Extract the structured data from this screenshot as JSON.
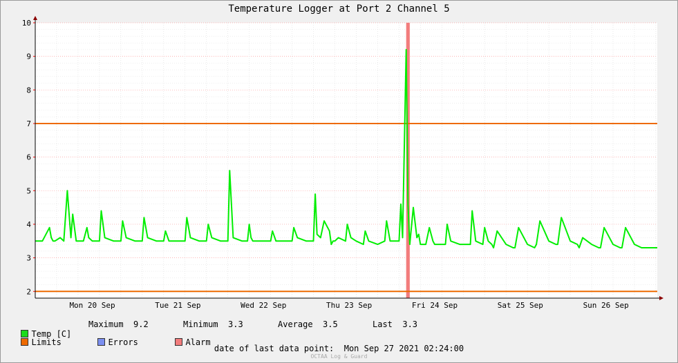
{
  "title": "Temperature Logger at Port 2 Channel 5",
  "chart_data": {
    "type": "line",
    "title": "Temperature Logger at Port 2 Channel 5",
    "ylim": [
      1.8,
      10
    ],
    "yticks": [
      2,
      3,
      4,
      5,
      6,
      7,
      8,
      9,
      10
    ],
    "xlim": [
      "2021-09-19T20:00",
      "2021-09-27T02:24"
    ],
    "x_tick_labels": [
      "Mon 20 Sep",
      "Tue 21 Sep",
      "Wed 22 Sep",
      "Thu 23 Sep",
      "Fri 24 Sep",
      "Sat 25 Sep",
      "Sun 26 Sep"
    ],
    "grid": true,
    "series": [
      {
        "name": "Temp [C]",
        "color": "#00ee00",
        "x": [
          "2021-09-19T20:00",
          "2021-09-19T22:00",
          "2021-09-20T00:00",
          "2021-09-20T00:30",
          "2021-09-20T01:00",
          "2021-09-20T01:30",
          "2021-09-20T03:00",
          "2021-09-20T04:00",
          "2021-09-20T05:00",
          "2021-09-20T06:00",
          "2021-09-20T06:30",
          "2021-09-20T07:30",
          "2021-09-20T08:00",
          "2021-09-20T08:30",
          "2021-09-20T09:30",
          "2021-09-20T10:30",
          "2021-09-20T11:00",
          "2021-09-20T12:00",
          "2021-09-20T14:00",
          "2021-09-20T14:30",
          "2021-09-20T15:30",
          "2021-09-20T18:00",
          "2021-09-20T20:00",
          "2021-09-20T20:30",
          "2021-09-20T21:30",
          "2021-09-21T00:00",
          "2021-09-21T02:00",
          "2021-09-21T02:30",
          "2021-09-21T03:30",
          "2021-09-21T06:00",
          "2021-09-21T08:00",
          "2021-09-21T08:30",
          "2021-09-21T09:30",
          "2021-09-21T12:00",
          "2021-09-21T14:00",
          "2021-09-21T14:30",
          "2021-09-21T15:30",
          "2021-09-21T18:00",
          "2021-09-21T20:00",
          "2021-09-21T20:30",
          "2021-09-21T21:30",
          "2021-09-22T00:00",
          "2021-09-22T02:00",
          "2021-09-22T02:30",
          "2021-09-22T03:30",
          "2021-09-22T06:00",
          "2021-09-22T07:30",
          "2021-09-22T08:00",
          "2021-09-22T08:30",
          "2021-09-22T09:00",
          "2021-09-22T10:00",
          "2021-09-22T12:00",
          "2021-09-22T14:00",
          "2021-09-22T14:30",
          "2021-09-22T15:30",
          "2021-09-22T18:00",
          "2021-09-22T20:00",
          "2021-09-22T20:30",
          "2021-09-22T21:30",
          "2021-09-23T00:00",
          "2021-09-23T02:00",
          "2021-09-23T02:30",
          "2021-09-23T03:00",
          "2021-09-23T04:00",
          "2021-09-23T05:00",
          "2021-09-23T06:30",
          "2021-09-23T07:00",
          "2021-09-23T07:30",
          "2021-09-23T08:00",
          "2021-09-23T09:00",
          "2021-09-23T11:00",
          "2021-09-23T11:30",
          "2021-09-23T12:30",
          "2021-09-23T14:00",
          "2021-09-23T16:00",
          "2021-09-23T16:30",
          "2021-09-23T17:30",
          "2021-09-23T20:00",
          "2021-09-23T22:00",
          "2021-09-23T22:30",
          "2021-09-23T23:30",
          "2021-09-24T02:00",
          "2021-09-24T02:30",
          "2021-09-24T03:00",
          "2021-09-24T04:00",
          "2021-09-24T04:30",
          "2021-09-24T05:00",
          "2021-09-24T06:00",
          "2021-09-24T07:00",
          "2021-09-24T07:30",
          "2021-09-24T08:00",
          "2021-09-24T08:30",
          "2021-09-24T09:00",
          "2021-09-24T09:30",
          "2021-09-24T10:30",
          "2021-09-24T11:30",
          "2021-09-24T12:00",
          "2021-09-24T13:00",
          "2021-09-24T15:00",
          "2021-09-24T15:30",
          "2021-09-24T16:30",
          "2021-09-24T19:00",
          "2021-09-24T22:00",
          "2021-09-24T22:30",
          "2021-09-24T23:30",
          "2021-09-25T01:30",
          "2021-09-25T02:00",
          "2021-09-25T03:00",
          "2021-09-25T04:00",
          "2021-09-25T04:30",
          "2021-09-25T05:30",
          "2021-09-25T08:00",
          "2021-09-25T10:00",
          "2021-09-25T10:30",
          "2021-09-25T11:30",
          "2021-09-25T14:00",
          "2021-09-25T16:00",
          "2021-09-25T16:30",
          "2021-09-25T17:30",
          "2021-09-25T20:00",
          "2021-09-25T22:00",
          "2021-09-25T22:30",
          "2021-09-25T23:30",
          "2021-09-26T02:00",
          "2021-09-26T04:00",
          "2021-09-26T04:30",
          "2021-09-26T05:30",
          "2021-09-26T08:00",
          "2021-09-26T10:00",
          "2021-09-26T10:30",
          "2021-09-26T11:30",
          "2021-09-26T14:00",
          "2021-09-26T16:00",
          "2021-09-26T16:30",
          "2021-09-26T17:30",
          "2021-09-26T20:00",
          "2021-09-26T22:00",
          "2021-09-26T22:30",
          "2021-09-26T23:30",
          "2021-09-27T02:24"
        ],
        "y": [
          3.5,
          3.5,
          3.9,
          3.6,
          3.5,
          3.5,
          3.6,
          3.5,
          5.0,
          3.6,
          4.3,
          3.5,
          3.5,
          3.5,
          3.5,
          3.9,
          3.6,
          3.5,
          3.5,
          4.4,
          3.6,
          3.5,
          3.5,
          4.1,
          3.6,
          3.5,
          3.5,
          4.2,
          3.6,
          3.5,
          3.5,
          3.8,
          3.5,
          3.5,
          3.5,
          4.2,
          3.6,
          3.5,
          3.5,
          4.0,
          3.6,
          3.5,
          3.5,
          5.6,
          3.6,
          3.5,
          3.5,
          4.0,
          3.6,
          3.5,
          3.5,
          3.5,
          3.5,
          3.8,
          3.5,
          3.5,
          3.5,
          3.9,
          3.6,
          3.5,
          3.5,
          4.9,
          3.7,
          3.6,
          4.1,
          3.8,
          3.4,
          3.5,
          3.5,
          3.6,
          3.5,
          4.0,
          3.6,
          3.5,
          3.4,
          3.8,
          3.5,
          3.4,
          3.5,
          4.1,
          3.5,
          3.5,
          4.6,
          3.6,
          9.2,
          4.6,
          3.4,
          4.5,
          3.6,
          3.7,
          3.4,
          3.4,
          3.4,
          3.4,
          3.9,
          3.5,
          3.4,
          3.4,
          3.4,
          4.0,
          3.5,
          3.4,
          3.4,
          4.4,
          3.5,
          3.4,
          3.9,
          3.5,
          3.4,
          3.3,
          3.8,
          3.4,
          3.3,
          3.3,
          3.9,
          3.4,
          3.3,
          3.4,
          4.1,
          3.5,
          3.4,
          3.4,
          4.2,
          3.5,
          3.4,
          3.3,
          3.6,
          3.4,
          3.3,
          3.3,
          3.9,
          3.4,
          3.3,
          3.3,
          3.9,
          3.4,
          3.3,
          3.3,
          3.3,
          3.3
        ]
      },
      {
        "name": "Limits",
        "color": "#ee6a00",
        "values": [
          2,
          7
        ]
      }
    ],
    "alarm": {
      "name": "Alarm",
      "color": "#f27c7c",
      "x": [
        "2021-09-24T04:00",
        "2021-09-24T05:00"
      ]
    },
    "errors": {
      "name": "Errors",
      "color": "#7b8ff0",
      "x": []
    }
  },
  "legend": {
    "temp_label": "Temp [C]",
    "limits_label": "Limits",
    "errors_label": "Errors",
    "alarm_label": "Alarm",
    "colors": {
      "temp": "#1adb1a",
      "limits": "#ee6a00",
      "errors": "#7b8ff0",
      "alarm": "#f27c7c"
    }
  },
  "stats": {
    "maximum_label": "Maximum",
    "maximum_value": "9.2",
    "minimum_label": "Minimum",
    "minimum_value": "3.3",
    "average_label": "Average",
    "average_value": "3.5",
    "last_label": "Last",
    "last_value": "3.3"
  },
  "footer": {
    "date_label": "date of last data point:",
    "date_value": "Mon Sep 27 2021 02:24:00"
  },
  "watermark": "OCTAA Log & Guard"
}
